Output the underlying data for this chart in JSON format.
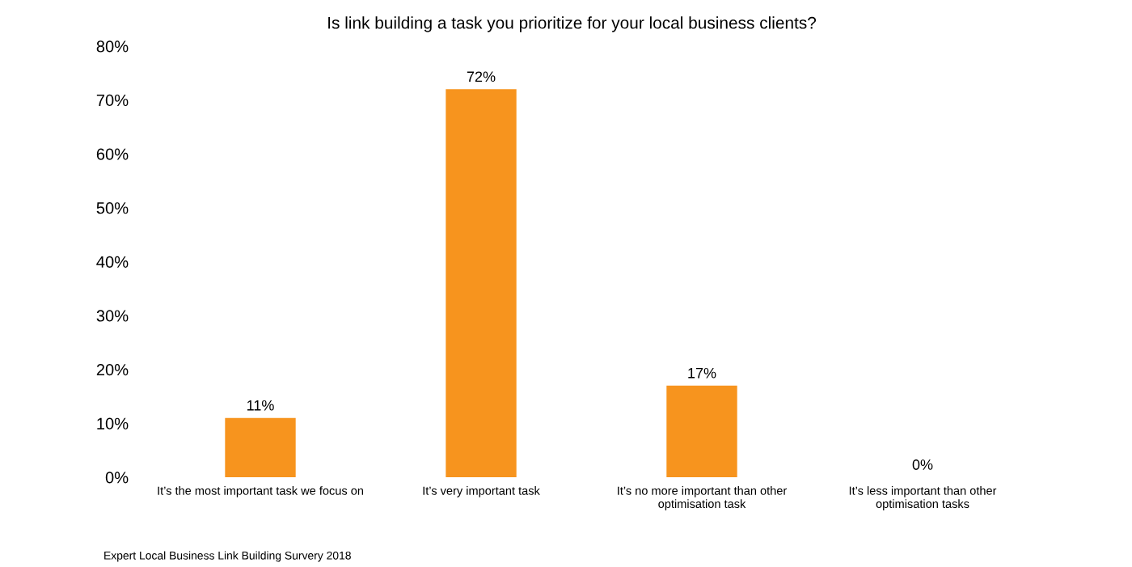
{
  "chart_data": {
    "type": "bar",
    "title": "Is link building a task you prioritize for your local business clients?",
    "categories": [
      "It’s the most important task we focus on",
      "It’s very important task",
      "It’s no more important than other\noptimisation task",
      "It’s less important than other\noptimisation tasks"
    ],
    "values": [
      11,
      72,
      17,
      0
    ],
    "color": "#f7941e",
    "value_labels": [
      "11%",
      "72%",
      "17%",
      "0%"
    ],
    "ylim": [
      0,
      80
    ],
    "yticks": [
      {
        "value": 0,
        "label": "0%"
      },
      {
        "value": 10,
        "label": "10%"
      },
      {
        "value": 20,
        "label": "20%"
      },
      {
        "value": 30,
        "label": "30%"
      },
      {
        "value": 40,
        "label": "40%"
      },
      {
        "value": 50,
        "label": "50%"
      },
      {
        "value": 60,
        "label": "60%"
      },
      {
        "value": 70,
        "label": "70%"
      },
      {
        "value": 80,
        "label": "80%"
      }
    ],
    "grid": false,
    "legend": false,
    "annotations": [
      "Expert Local Business Link Building Survery 2018"
    ]
  }
}
